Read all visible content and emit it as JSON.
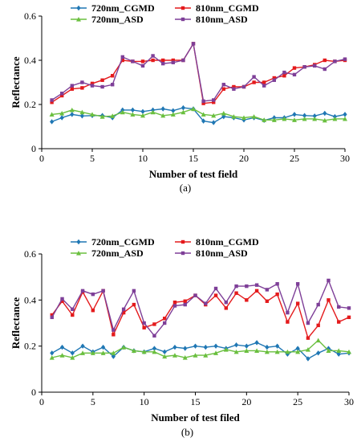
{
  "chart_data": [
    {
      "type": "line",
      "panel_label": "(a)",
      "xlabel": "Number of test field",
      "ylabel": "Reflectance",
      "xlim": [
        0,
        30
      ],
      "ylim": [
        0,
        0.6
      ],
      "xticks": [
        "0",
        "5",
        "10",
        "15",
        "20",
        "25",
        "30"
      ],
      "yticks": [
        "0",
        "0.2",
        "0.4",
        "0.6"
      ],
      "legend_position": "top",
      "x": [
        1,
        2,
        3,
        4,
        5,
        6,
        7,
        8,
        9,
        10,
        11,
        12,
        13,
        14,
        15,
        16,
        17,
        18,
        19,
        20,
        21,
        22,
        23,
        24,
        25,
        26,
        27,
        28,
        29,
        30
      ],
      "series": [
        {
          "name": "720nm_CGMD",
          "color": "#1f77b4",
          "marker": "diamond",
          "values": [
            0.122,
            0.14,
            0.155,
            0.148,
            0.15,
            0.15,
            0.14,
            0.175,
            0.175,
            0.168,
            0.175,
            0.18,
            0.172,
            0.185,
            0.18,
            0.125,
            0.118,
            0.145,
            0.14,
            0.13,
            0.14,
            0.128,
            0.14,
            0.14,
            0.155,
            0.15,
            0.148,
            0.16,
            0.145,
            0.155
          ]
        },
        {
          "name": "810nm_CGMD",
          "color": "#e41a1c",
          "marker": "square",
          "values": [
            0.21,
            0.24,
            0.27,
            0.275,
            0.295,
            0.31,
            0.33,
            0.4,
            0.395,
            0.395,
            0.4,
            0.4,
            0.4,
            0.4,
            0.475,
            0.205,
            0.21,
            0.27,
            0.28,
            0.28,
            0.3,
            0.3,
            0.32,
            0.33,
            0.365,
            0.37,
            0.38,
            0.4,
            0.395,
            0.4
          ]
        },
        {
          "name": "720nm_ASD",
          "color": "#6abf3f",
          "marker": "triangle",
          "values": [
            0.155,
            0.16,
            0.175,
            0.165,
            0.155,
            0.145,
            0.148,
            0.165,
            0.155,
            0.15,
            0.165,
            0.15,
            0.155,
            0.165,
            0.18,
            0.155,
            0.15,
            0.16,
            0.145,
            0.14,
            0.145,
            0.13,
            0.13,
            0.135,
            0.13,
            0.135,
            0.135,
            0.128,
            0.135,
            0.135
          ]
        },
        {
          "name": "810nm_ASD",
          "color": "#7e3f98",
          "marker": "square",
          "values": [
            0.22,
            0.25,
            0.285,
            0.3,
            0.285,
            0.28,
            0.29,
            0.415,
            0.395,
            0.375,
            0.42,
            0.385,
            0.39,
            0.4,
            0.475,
            0.215,
            0.22,
            0.29,
            0.27,
            0.28,
            0.325,
            0.285,
            0.31,
            0.345,
            0.335,
            0.37,
            0.375,
            0.36,
            0.395,
            0.405
          ]
        }
      ]
    },
    {
      "type": "line",
      "panel_label": "(b)",
      "xlabel": "Number of test filed",
      "ylabel": "Reflectance",
      "xlim": [
        0,
        30
      ],
      "ylim": [
        0,
        0.6
      ],
      "xticks": [
        "0",
        "5",
        "10",
        "15",
        "20",
        "25",
        "30"
      ],
      "yticks": [
        "0",
        "0.2",
        "0.4",
        "0.6"
      ],
      "legend_position": "top",
      "x": [
        1,
        2,
        3,
        4,
        5,
        6,
        7,
        8,
        9,
        10,
        11,
        12,
        13,
        14,
        15,
        16,
        17,
        18,
        19,
        20,
        21,
        22,
        23,
        24,
        25,
        26,
        27,
        28,
        29,
        30
      ],
      "series": [
        {
          "name": "720nm_CGMD",
          "color": "#1f77b4",
          "marker": "diamond",
          "values": [
            0.17,
            0.195,
            0.17,
            0.2,
            0.175,
            0.195,
            0.155,
            0.195,
            0.18,
            0.175,
            0.19,
            0.175,
            0.195,
            0.19,
            0.2,
            0.195,
            0.2,
            0.19,
            0.205,
            0.2,
            0.215,
            0.195,
            0.2,
            0.165,
            0.19,
            0.145,
            0.17,
            0.19,
            0.165,
            0.17
          ]
        },
        {
          "name": "810nm_CGMD",
          "color": "#e41a1c",
          "marker": "square",
          "values": [
            0.335,
            0.395,
            0.335,
            0.435,
            0.355,
            0.44,
            0.25,
            0.345,
            0.38,
            0.28,
            0.295,
            0.32,
            0.39,
            0.395,
            0.42,
            0.38,
            0.42,
            0.365,
            0.43,
            0.4,
            0.44,
            0.395,
            0.425,
            0.305,
            0.385,
            0.235,
            0.29,
            0.4,
            0.305,
            0.325
          ]
        },
        {
          "name": "720nm_ASD",
          "color": "#6abf3f",
          "marker": "triangle",
          "values": [
            0.15,
            0.16,
            0.15,
            0.17,
            0.17,
            0.17,
            0.17,
            0.195,
            0.18,
            0.175,
            0.175,
            0.155,
            0.16,
            0.15,
            0.16,
            0.16,
            0.17,
            0.185,
            0.175,
            0.18,
            0.18,
            0.175,
            0.175,
            0.175,
            0.175,
            0.185,
            0.225,
            0.18,
            0.18,
            0.175
          ]
        },
        {
          "name": "810nm_ASD",
          "color": "#7e3f98",
          "marker": "square",
          "values": [
            0.325,
            0.405,
            0.36,
            0.44,
            0.425,
            0.44,
            0.27,
            0.36,
            0.44,
            0.3,
            0.245,
            0.3,
            0.375,
            0.38,
            0.42,
            0.385,
            0.45,
            0.39,
            0.46,
            0.46,
            0.465,
            0.445,
            0.47,
            0.345,
            0.47,
            0.3,
            0.38,
            0.485,
            0.37,
            0.365
          ]
        }
      ]
    }
  ]
}
